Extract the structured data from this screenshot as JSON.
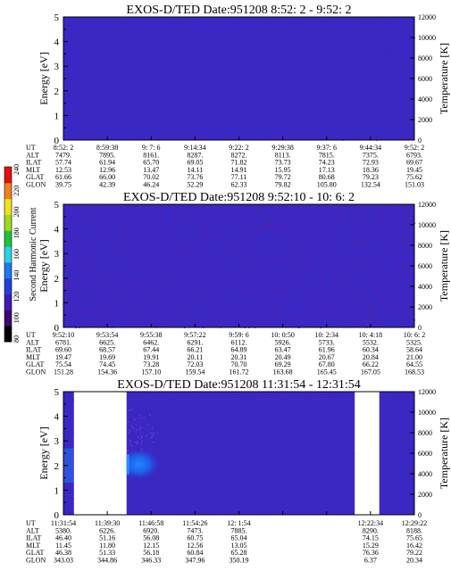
{
  "chart_data": [
    {
      "type": "heatmap",
      "title": "EXOS-D/TED   Date:951208   8:52: 2 - 9:52: 2",
      "ylabel": "Energy [eV]",
      "y2label": "Temperature [K]",
      "ylim": [
        0,
        5
      ],
      "y2lim": [
        0,
        12000
      ],
      "yticks": [
        "0",
        "1",
        "2",
        "3",
        "4",
        "5"
      ],
      "y2ticks": [
        "0",
        "2000",
        "4000",
        "6000",
        "8000",
        "10000",
        "12000"
      ],
      "fill": "uniform low (background level)",
      "coverage": [
        [
          0,
          1
        ]
      ],
      "orbit_rows": [
        {
          "label": "UT",
          "values": [
            "8:52: 2",
            "8:59:38",
            "9: 7: 6",
            "9:14:34",
            "9:22: 2",
            "9:29:38",
            "9:37: 6",
            "9:44:34",
            "9:52: 2"
          ]
        },
        {
          "label": "ALT",
          "values": [
            "7479.",
            "7895.",
            "8161.",
            "8287.",
            "8272.",
            "8113.",
            "7815.",
            "7375.",
            "6793."
          ]
        },
        {
          "label": "ILAT",
          "values": [
            "57.74",
            "61.94",
            "65.70",
            "69.05",
            "71.82",
            "73.73",
            "74.23",
            "72.93",
            "69.67"
          ]
        },
        {
          "label": "MLT",
          "values": [
            "12.53",
            "12.96",
            "13.47",
            "14.11",
            "14.91",
            "15.95",
            "17.13",
            "18.36",
            "19.45"
          ]
        },
        {
          "label": "GLAT",
          "values": [
            "61.66",
            "66.00",
            "70.02",
            "73.76",
            "77.11",
            "79.72",
            "80.68",
            "79.23",
            "75.62"
          ]
        },
        {
          "label": "GLON",
          "values": [
            "39.75",
            "42.39",
            "46.24",
            "52.29",
            "62.33",
            "79.82",
            "105.80",
            "132.54",
            "151.03"
          ]
        }
      ]
    },
    {
      "type": "heatmap",
      "title": "EXOS-D/TED   Date:951208   9:52:10 - 10: 6: 2",
      "ylabel": "Energy [eV]",
      "y2label": "Temperature [K]",
      "ylim": [
        0,
        5
      ],
      "y2lim": [
        0,
        12000
      ],
      "yticks": [
        "0",
        "1",
        "2",
        "3",
        "4",
        "5"
      ],
      "y2ticks": [
        "0",
        "2000",
        "4000",
        "6000",
        "8000",
        "10000",
        "12000"
      ],
      "fill": "uniform low with sparse slightly higher speckles",
      "coverage": [
        [
          0,
          1
        ]
      ],
      "orbit_rows": [
        {
          "label": "UT",
          "values": [
            "9:52:10",
            "9:53:54",
            "9:55:38",
            "9:57:22",
            "9:59: 6",
            "10: 0:50",
            "10: 2:34",
            "10: 4:18",
            "10: 6: 2"
          ]
        },
        {
          "label": "ALT",
          "values": [
            "6781.",
            "6625.",
            "6462.",
            "6291.",
            "6112.",
            "5926.",
            "5733.",
            "5532.",
            "5325."
          ]
        },
        {
          "label": "ILAT",
          "values": [
            "69.60",
            "68.57",
            "67.44",
            "66.21",
            "64.89",
            "63.47",
            "61.96",
            "60.34",
            "58.64"
          ]
        },
        {
          "label": "MLT",
          "values": [
            "19.47",
            "19.69",
            "19.91",
            "20.11",
            "20.31",
            "20.49",
            "20.67",
            "20.84",
            "21.00"
          ]
        },
        {
          "label": "GLAT",
          "values": [
            "75.54",
            "74.45",
            "73.28",
            "72.03",
            "70.70",
            "69.29",
            "67.80",
            "66.22",
            "64.55"
          ]
        },
        {
          "label": "GLON",
          "values": [
            "151.28",
            "154.36",
            "157.10",
            "159.54",
            "161.72",
            "163.68",
            "165.45",
            "167.05",
            "168.53"
          ]
        }
      ]
    },
    {
      "type": "heatmap",
      "title": "EXOS-D/TED   Date:951208   11:31:54 - 12:31:54",
      "ylabel": "Energy [eV]",
      "y2label": "Temperature [K]",
      "ylim": [
        0,
        5
      ],
      "y2lim": [
        0,
        12000
      ],
      "yticks": [
        "0",
        "1",
        "2",
        "3",
        "4",
        "5"
      ],
      "y2ticks": [
        "0",
        "2000",
        "4000",
        "6000",
        "8000",
        "10000",
        "12000"
      ],
      "fill": "low background with data gaps; enhanced emission near 1.5-2.5 eV at ~11:39-11:44",
      "coverage": [
        [
          0,
          0.03
        ],
        [
          0.18,
          0.83
        ],
        [
          0.9,
          1
        ]
      ],
      "enhancement": {
        "time_frac": [
          0.18,
          0.28
        ],
        "energy_ev": [
          1.5,
          2.6
        ]
      },
      "orbit_rows": [
        {
          "label": "UT",
          "values": [
            "11:31:54",
            "11:39:30",
            "11:46:58",
            "11:54:26",
            "12: 1:54",
            "",
            "",
            "12:22:34",
            "12:29:22"
          ]
        },
        {
          "label": "ALT",
          "values": [
            "5380.",
            "6226.",
            "6920.",
            "7473.",
            "7885.",
            "",
            "",
            "8290.",
            "8188."
          ]
        },
        {
          "label": "ILAT",
          "values": [
            "46.40",
            "51.16",
            "56.08",
            "60.75",
            "65.04",
            "",
            "",
            "74.15",
            "75.65"
          ]
        },
        {
          "label": "MLT",
          "values": [
            "11.45",
            "11.80",
            "12.15",
            "12.56",
            "13.05",
            "",
            "",
            "15.29",
            "16.42"
          ]
        },
        {
          "label": "GLAT",
          "values": [
            "46.38",
            "51.33",
            "56.18",
            "60.84",
            "65.28",
            "",
            "",
            "76.36",
            "79.22"
          ]
        },
        {
          "label": "GLON",
          "values": [
            "343.03",
            "344.86",
            "346.33",
            "347.96",
            "350.19",
            "",
            "",
            "6.37",
            "20.34"
          ]
        }
      ]
    }
  ],
  "colorbar": {
    "label": "Second Harmonic Current",
    "ticks": [
      "80",
      "100",
      "120",
      "140",
      "160",
      "180",
      "200",
      "220",
      "240"
    ],
    "colors": [
      "#000000",
      "#3c0a6e",
      "#3e1cb0",
      "#2340d8",
      "#1e78f0",
      "#2ad2e6",
      "#20c040",
      "#a0d820",
      "#f0e020",
      "#f08020",
      "#e01010"
    ]
  }
}
